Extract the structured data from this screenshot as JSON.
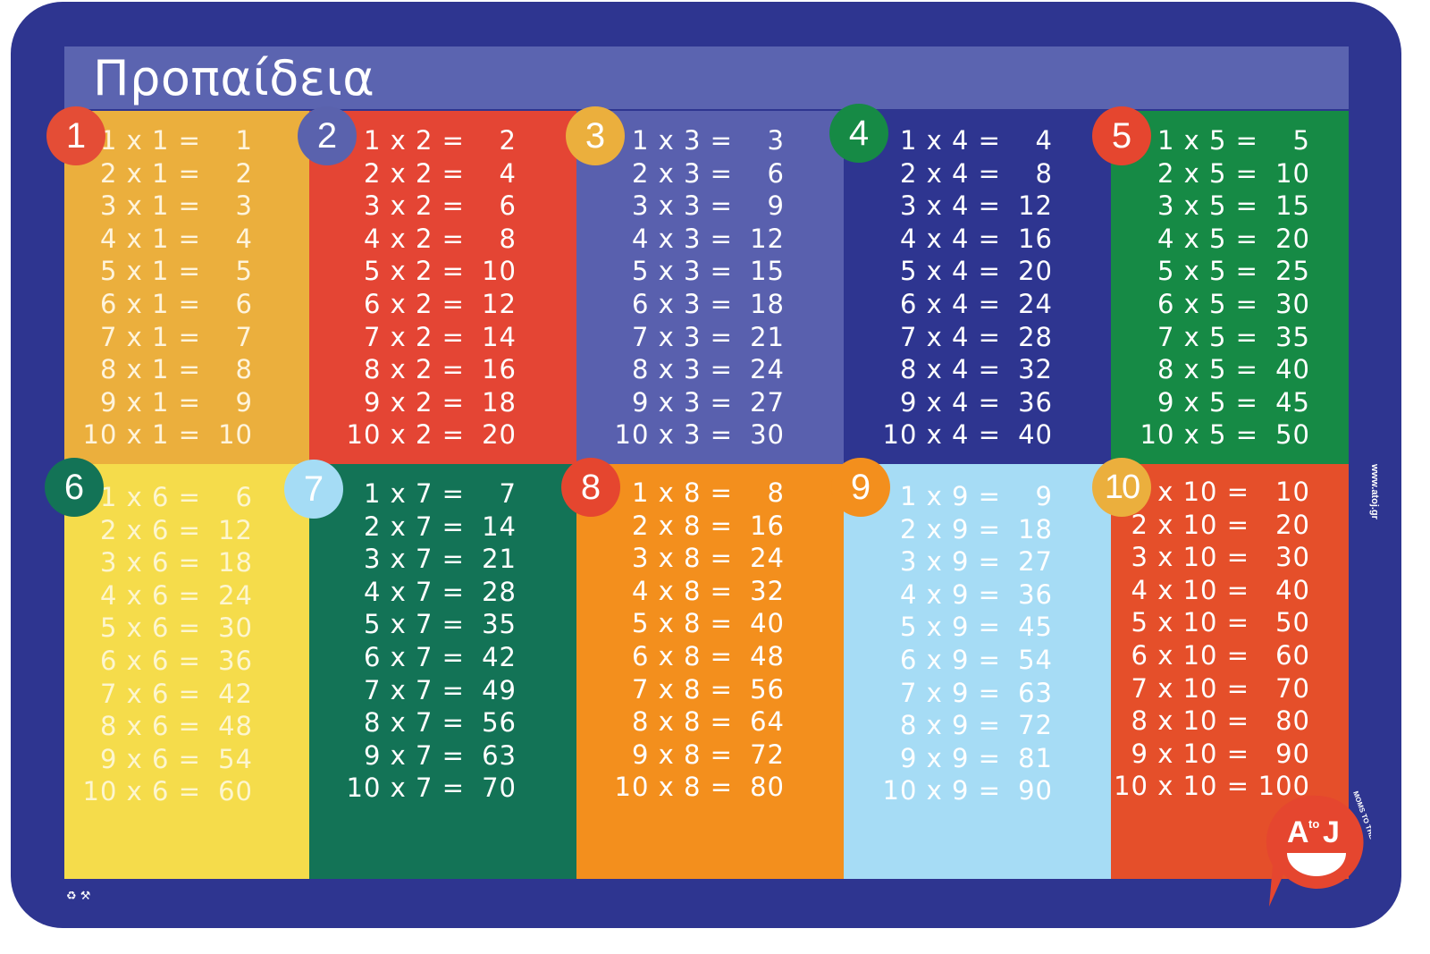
{
  "title": "Προπαίδεια",
  "website": "www.atoj.gr",
  "logo": {
    "letter_a": "A",
    "letter_to": "to",
    "letter_j": "J",
    "slogan": "MOMS TO THE RESCUE!"
  },
  "recycle_icons": "♻ ⚒",
  "colors": {
    "mat": "#2e3590",
    "title_bar": "#5b64b0"
  },
  "tables": [
    {
      "number": "1",
      "panel_color": "#ebaf3d",
      "circle_color": "#e44d36",
      "text_color": "#fff4dc",
      "rows": [
        [
          "1 x 1 =",
          "1"
        ],
        [
          "2 x 1 =",
          "2"
        ],
        [
          "3 x 1 =",
          "3"
        ],
        [
          "4 x 1 =",
          "4"
        ],
        [
          "5 x 1 =",
          "5"
        ],
        [
          "6 x 1 =",
          "6"
        ],
        [
          "7 x 1 =",
          "7"
        ],
        [
          "8 x 1 =",
          "8"
        ],
        [
          "9 x 1 =",
          "9"
        ],
        [
          "10  x 1 =",
          "10"
        ]
      ]
    },
    {
      "number": "2",
      "panel_color": "#e44534",
      "circle_color": "#5a62ad",
      "text_color": "#ffffff",
      "rows": [
        [
          "1 x 2 =",
          "2"
        ],
        [
          "2 x 2 =",
          "4"
        ],
        [
          "3 x 2 =",
          "6"
        ],
        [
          "4 x 2 =",
          "8"
        ],
        [
          "5 x 2 =",
          "10"
        ],
        [
          "6 x 2 =",
          "12"
        ],
        [
          "7 x 2 =",
          "14"
        ],
        [
          "8 x 2 =",
          "16"
        ],
        [
          "9 x 2 =",
          "18"
        ],
        [
          "10  x 2 =",
          "20"
        ]
      ]
    },
    {
      "number": "3",
      "panel_color": "#5960ae",
      "circle_color": "#ebaf3d",
      "text_color": "#ffffff",
      "rows": [
        [
          "1 x 3 =",
          "3"
        ],
        [
          "2 x 3 =",
          "6"
        ],
        [
          "3 x 3 =",
          "9"
        ],
        [
          "4 x 3 =",
          "12"
        ],
        [
          "5 x 3 =",
          "15"
        ],
        [
          "6 x 3 =",
          "18"
        ],
        [
          "7 x 3 =",
          "21"
        ],
        [
          "8 x 3 =",
          "24"
        ],
        [
          "9 x 3 =",
          "27"
        ],
        [
          "10  x 3 =",
          "30"
        ]
      ]
    },
    {
      "number": "4",
      "panel_color": "#2e3590",
      "circle_color": "#168a45",
      "text_color": "#ffffff",
      "rows": [
        [
          "1 x 4 =",
          "4"
        ],
        [
          "2 x 4 =",
          "8"
        ],
        [
          "3 x 4 =",
          "12"
        ],
        [
          "4 x 4 =",
          "16"
        ],
        [
          "5 x 4 =",
          "20"
        ],
        [
          "6 x 4 =",
          "24"
        ],
        [
          "7 x 4 =",
          "28"
        ],
        [
          "8 x 4 =",
          "32"
        ],
        [
          "9 x 4 =",
          "36"
        ],
        [
          "10  x 4 =",
          "40"
        ]
      ]
    },
    {
      "number": "5",
      "panel_color": "#168a45",
      "circle_color": "#e5462f",
      "text_color": "#ffffff",
      "rows": [
        [
          "1 x 5 =",
          "5"
        ],
        [
          "2 x 5 =",
          "10"
        ],
        [
          "3 x 5 =",
          "15"
        ],
        [
          "4 x 5 =",
          "20"
        ],
        [
          "5 x 5 =",
          "25"
        ],
        [
          "6 x 5 =",
          "30"
        ],
        [
          "7 x 5 =",
          "35"
        ],
        [
          "8 x 5 =",
          "40"
        ],
        [
          "9 x 5 =",
          "45"
        ],
        [
          "10  x 5 =",
          "50"
        ]
      ]
    },
    {
      "number": "6",
      "panel_color": "#f5dc4b",
      "circle_color": "#137356",
      "text_color": "#fdf6cf",
      "rows": [
        [
          "1 x 6 =",
          "6"
        ],
        [
          "2 x 6 =",
          "12"
        ],
        [
          "3 x 6 =",
          "18"
        ],
        [
          "4 x 6 =",
          "24"
        ],
        [
          "5 x 6 =",
          "30"
        ],
        [
          "6 x 6 =",
          "36"
        ],
        [
          "7 x 6 =",
          "42"
        ],
        [
          "8 x 6 =",
          "48"
        ],
        [
          "9 x 6 =",
          "54"
        ],
        [
          "10  x 6 =",
          "60"
        ]
      ]
    },
    {
      "number": "7",
      "panel_color": "#137356",
      "circle_color": "#a5dcf5",
      "text_color": "#ffffff",
      "rows": [
        [
          "1 x 7 =",
          "7"
        ],
        [
          "2 x 7 =",
          "14"
        ],
        [
          "3 x 7 =",
          "21"
        ],
        [
          "4 x 7 =",
          "28"
        ],
        [
          "5 x 7 =",
          "35"
        ],
        [
          "6 x 7 =",
          "42"
        ],
        [
          "7 x 7 =",
          "49"
        ],
        [
          "8 x 7 =",
          "56"
        ],
        [
          "9 x 7 =",
          "63"
        ],
        [
          "10  x 7 =",
          "70"
        ]
      ]
    },
    {
      "number": "8",
      "panel_color": "#f38f1d",
      "circle_color": "#e5462f",
      "text_color": "#ffffff",
      "rows": [
        [
          "1 x 8 =",
          "8"
        ],
        [
          "2 x 8 =",
          "16"
        ],
        [
          "3 x 8 =",
          "24"
        ],
        [
          "4 x 8 =",
          "32"
        ],
        [
          "5 x 8 =",
          "40"
        ],
        [
          "6 x 8 =",
          "48"
        ],
        [
          "7 x 8 =",
          "56"
        ],
        [
          "8 x 8 =",
          "64"
        ],
        [
          "9 x 8 =",
          "72"
        ],
        [
          "10  x 8 =",
          "80"
        ]
      ]
    },
    {
      "number": "9",
      "panel_color": "#a6dcf5",
      "circle_color": "#f38f1d",
      "text_color": "#ffffff",
      "rows": [
        [
          "1 x 9 =",
          "9"
        ],
        [
          "2 x 9 =",
          "18"
        ],
        [
          "3 x 9 =",
          "27"
        ],
        [
          "4 x 9 =",
          "36"
        ],
        [
          "5 x 9 =",
          "45"
        ],
        [
          "6 x 9 =",
          "54"
        ],
        [
          "7 x 9 =",
          "63"
        ],
        [
          "8 x 9 =",
          "72"
        ],
        [
          "9 x 9 =",
          "81"
        ],
        [
          "10  x 9 =",
          "90"
        ]
      ]
    },
    {
      "number": "10",
      "panel_color": "#e54f2a",
      "circle_color": "#ebaf3d",
      "text_color": "#ffffff",
      "rows": [
        [
          "1 x 10 =",
          "10"
        ],
        [
          "2 x 10 =",
          "20"
        ],
        [
          "3 x 10 =",
          "30"
        ],
        [
          "4 x 10 =",
          "40"
        ],
        [
          "5 x 10 =",
          "50"
        ],
        [
          "6 x 10 =",
          "60"
        ],
        [
          "7 x 10 =",
          "70"
        ],
        [
          "8 x 10 =",
          "80"
        ],
        [
          "9 x 10 =",
          "90"
        ],
        [
          "10  x 10 =",
          "100"
        ]
      ]
    }
  ]
}
